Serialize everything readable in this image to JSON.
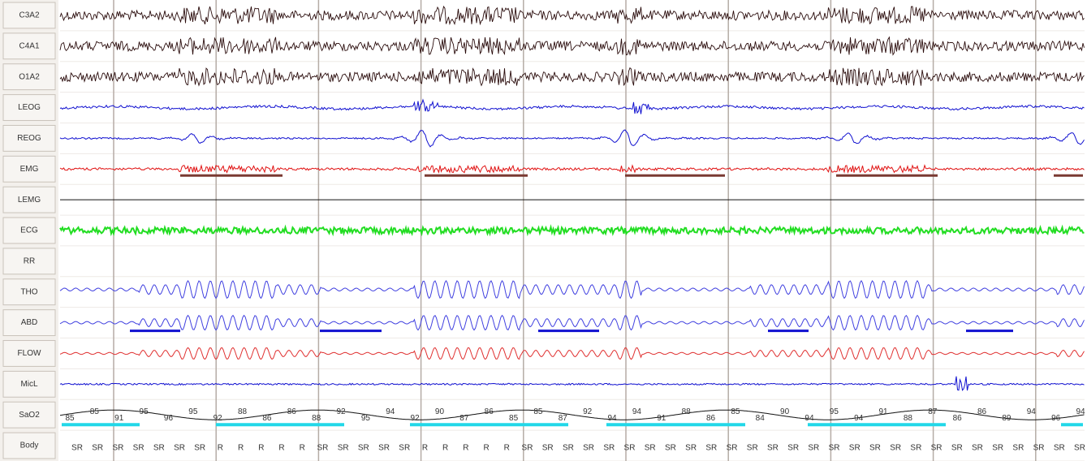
{
  "channels": [
    "C3A2",
    "C4A1",
    "O1A2",
    "LEOG",
    "REOG",
    "EMG",
    "LEMG",
    "ECG",
    "RR",
    "THO",
    "ABD",
    "FLOW",
    "MicL",
    "SaO2",
    "Body"
  ],
  "sao2_values": [
    "85",
    "85",
    "91",
    "95",
    "96",
    "95",
    "92",
    "88",
    "86",
    "86",
    "88",
    "92",
    "95",
    "94",
    "92",
    "90",
    "87",
    "86",
    "85",
    "85",
    "87",
    "92",
    "94",
    "94",
    "91",
    "88",
    "86",
    "85",
    "84",
    "90",
    "94",
    "95",
    "94",
    "91",
    "88",
    "87",
    "86",
    "86",
    "89",
    "94",
    "96",
    "94"
  ],
  "body_positions": [
    "SR",
    "SR",
    "SR",
    "SR",
    "SR",
    "SR",
    "SR",
    "R",
    "R",
    "R",
    "R",
    "R",
    "SR",
    "SR",
    "SR",
    "SR",
    "SR",
    "R",
    "R",
    "R",
    "R",
    "R",
    "SR",
    "SR",
    "SR",
    "SR",
    "SR",
    "SR",
    "SR",
    "SR",
    "SR",
    "SR",
    "SR",
    "SR",
    "SR",
    "SR",
    "SR",
    "SR",
    "SR",
    "SR",
    "SR",
    "SR",
    "SR",
    "SR",
    "SR",
    "SR",
    "SR",
    "SR",
    "SR",
    "SR"
  ]
}
